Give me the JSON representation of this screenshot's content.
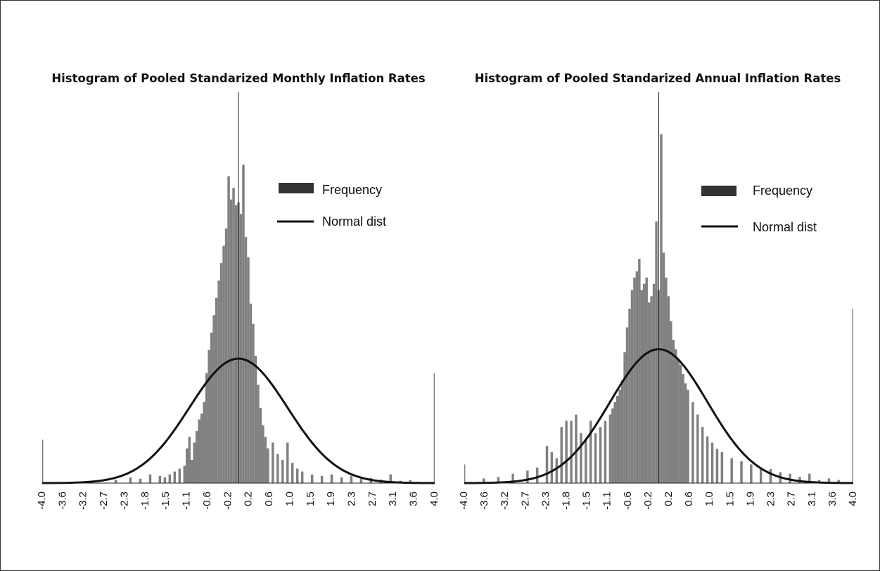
{
  "chart_data": [
    {
      "type": "bar",
      "title": "Histogram of Pooled Standarized Monthly Inflation Rates",
      "xlabel": "",
      "ylabel": "",
      "xlim": [
        -4.0,
        4.0
      ],
      "x_tick_labels": [
        "-4.0",
        "-3.6",
        "-3.2",
        "-2.7",
        "-2.3",
        "-1.8",
        "-1.5",
        "-1.1",
        "-0.6",
        "-0.2",
        "0.2",
        "0.6",
        "1.0",
        "1.5",
        "1.9",
        "2.3",
        "2.7",
        "3.1",
        "3.6",
        "4.0"
      ],
      "reference_line_x": 0.0,
      "legend": {
        "placement": "top-right",
        "items": [
          "Frequency",
          "Normal dist"
        ]
      },
      "series": [
        {
          "name": "Frequency",
          "kind": "bars",
          "color": "#808080",
          "bin_width": 0.05,
          "points": [
            [
              -4.0,
              0.15
            ],
            [
              -3.0,
              0.008
            ],
            [
              -2.5,
              0.012
            ],
            [
              -2.2,
              0.02
            ],
            [
              -2.0,
              0.015
            ],
            [
              -1.8,
              0.03
            ],
            [
              -1.6,
              0.025
            ],
            [
              -1.5,
              0.02
            ],
            [
              -1.4,
              0.03
            ],
            [
              -1.3,
              0.04
            ],
            [
              -1.2,
              0.05
            ],
            [
              -1.1,
              0.06
            ],
            [
              -1.05,
              0.12
            ],
            [
              -1.0,
              0.16
            ],
            [
              -0.95,
              0.08
            ],
            [
              -0.9,
              0.14
            ],
            [
              -0.85,
              0.18
            ],
            [
              -0.8,
              0.22
            ],
            [
              -0.75,
              0.24
            ],
            [
              -0.7,
              0.28
            ],
            [
              -0.65,
              0.38
            ],
            [
              -0.6,
              0.46
            ],
            [
              -0.55,
              0.52
            ],
            [
              -0.5,
              0.58
            ],
            [
              -0.45,
              0.64
            ],
            [
              -0.4,
              0.7
            ],
            [
              -0.35,
              0.76
            ],
            [
              -0.3,
              0.82
            ],
            [
              -0.25,
              0.88
            ],
            [
              -0.2,
              1.06
            ],
            [
              -0.15,
              0.98
            ],
            [
              -0.1,
              1.02
            ],
            [
              -0.05,
              0.96
            ],
            [
              0.0,
              0.97
            ],
            [
              0.05,
              0.93
            ],
            [
              0.1,
              1.1
            ],
            [
              0.15,
              0.85
            ],
            [
              0.2,
              0.78
            ],
            [
              0.25,
              0.62
            ],
            [
              0.3,
              0.55
            ],
            [
              0.35,
              0.44
            ],
            [
              0.4,
              0.34
            ],
            [
              0.45,
              0.26
            ],
            [
              0.5,
              0.2
            ],
            [
              0.55,
              0.16
            ],
            [
              0.6,
              0.12
            ],
            [
              0.7,
              0.14
            ],
            [
              0.8,
              0.1
            ],
            [
              0.9,
              0.08
            ],
            [
              1.0,
              0.14
            ],
            [
              1.1,
              0.07
            ],
            [
              1.2,
              0.05
            ],
            [
              1.3,
              0.04
            ],
            [
              1.5,
              0.03
            ],
            [
              1.7,
              0.025
            ],
            [
              1.9,
              0.03
            ],
            [
              2.1,
              0.02
            ],
            [
              2.3,
              0.025
            ],
            [
              2.5,
              0.015
            ],
            [
              2.7,
              0.018
            ],
            [
              2.9,
              0.012
            ],
            [
              3.1,
              0.03
            ],
            [
              3.3,
              0.008
            ],
            [
              3.5,
              0.01
            ],
            [
              4.0,
              0.38
            ]
          ]
        },
        {
          "name": "Normal dist",
          "kind": "line",
          "color": "#111111",
          "mean": 0.0,
          "sd": 1.0,
          "peak": 0.43
        }
      ]
    },
    {
      "type": "bar",
      "title": "Histogram of Pooled Standarized Annual Inflation Rates",
      "xlabel": "",
      "ylabel": "",
      "xlim": [
        -4.0,
        4.0
      ],
      "x_tick_labels": [
        "-4.0",
        "-3.6",
        "-3.2",
        "-2.7",
        "-2.3",
        "-1.8",
        "-1.5",
        "-1.1",
        "-0.6",
        "-0.2",
        "0.2",
        "0.6",
        "1.0",
        "1.5",
        "1.9",
        "2.3",
        "2.7",
        "3.1",
        "3.6",
        "4.0"
      ],
      "reference_line_x": 0.0,
      "legend": {
        "placement": "top-right",
        "items": [
          "Frequency",
          "Normal dist"
        ]
      },
      "series": [
        {
          "name": "Frequency",
          "kind": "bars",
          "color": "#808080",
          "bin_width": 0.05,
          "points": [
            [
              -4.0,
              0.06
            ],
            [
              -3.6,
              0.015
            ],
            [
              -3.3,
              0.02
            ],
            [
              -3.0,
              0.03
            ],
            [
              -2.7,
              0.04
            ],
            [
              -2.5,
              0.05
            ],
            [
              -2.3,
              0.12
            ],
            [
              -2.2,
              0.1
            ],
            [
              -2.1,
              0.08
            ],
            [
              -2.0,
              0.18
            ],
            [
              -1.9,
              0.2
            ],
            [
              -1.8,
              0.2
            ],
            [
              -1.7,
              0.22
            ],
            [
              -1.6,
              0.16
            ],
            [
              -1.5,
              0.14
            ],
            [
              -1.4,
              0.2
            ],
            [
              -1.3,
              0.16
            ],
            [
              -1.2,
              0.18
            ],
            [
              -1.1,
              0.2
            ],
            [
              -1.0,
              0.22
            ],
            [
              -0.95,
              0.24
            ],
            [
              -0.9,
              0.26
            ],
            [
              -0.85,
              0.28
            ],
            [
              -0.8,
              0.3
            ],
            [
              -0.75,
              0.33
            ],
            [
              -0.7,
              0.42
            ],
            [
              -0.65,
              0.5
            ],
            [
              -0.6,
              0.56
            ],
            [
              -0.55,
              0.62
            ],
            [
              -0.5,
              0.66
            ],
            [
              -0.45,
              0.68
            ],
            [
              -0.4,
              0.72
            ],
            [
              -0.35,
              0.62
            ],
            [
              -0.3,
              0.64
            ],
            [
              -0.25,
              0.66
            ],
            [
              -0.2,
              0.58
            ],
            [
              -0.15,
              0.6
            ],
            [
              -0.1,
              0.64
            ],
            [
              -0.05,
              0.84
            ],
            [
              0.0,
              0.62
            ],
            [
              0.05,
              1.12
            ],
            [
              0.1,
              0.74
            ],
            [
              0.15,
              0.66
            ],
            [
              0.2,
              0.6
            ],
            [
              0.25,
              0.52
            ],
            [
              0.3,
              0.46
            ],
            [
              0.35,
              0.43
            ],
            [
              0.4,
              0.4
            ],
            [
              0.45,
              0.38
            ],
            [
              0.5,
              0.35
            ],
            [
              0.55,
              0.32
            ],
            [
              0.6,
              0.3
            ],
            [
              0.7,
              0.26
            ],
            [
              0.8,
              0.22
            ],
            [
              0.9,
              0.18
            ],
            [
              1.0,
              0.15
            ],
            [
              1.1,
              0.13
            ],
            [
              1.2,
              0.11
            ],
            [
              1.3,
              0.1
            ],
            [
              1.5,
              0.08
            ],
            [
              1.7,
              0.07
            ],
            [
              1.9,
              0.06
            ],
            [
              2.1,
              0.05
            ],
            [
              2.3,
              0.045
            ],
            [
              2.5,
              0.035
            ],
            [
              2.7,
              0.03
            ],
            [
              2.9,
              0.02
            ],
            [
              3.1,
              0.03
            ],
            [
              3.3,
              0.01
            ],
            [
              3.5,
              0.015
            ],
            [
              3.7,
              0.01
            ],
            [
              4.0,
              0.56
            ]
          ]
        },
        {
          "name": "Normal dist",
          "kind": "line",
          "color": "#111111",
          "mean": 0.0,
          "sd": 1.0,
          "peak": 0.43
        }
      ]
    }
  ]
}
